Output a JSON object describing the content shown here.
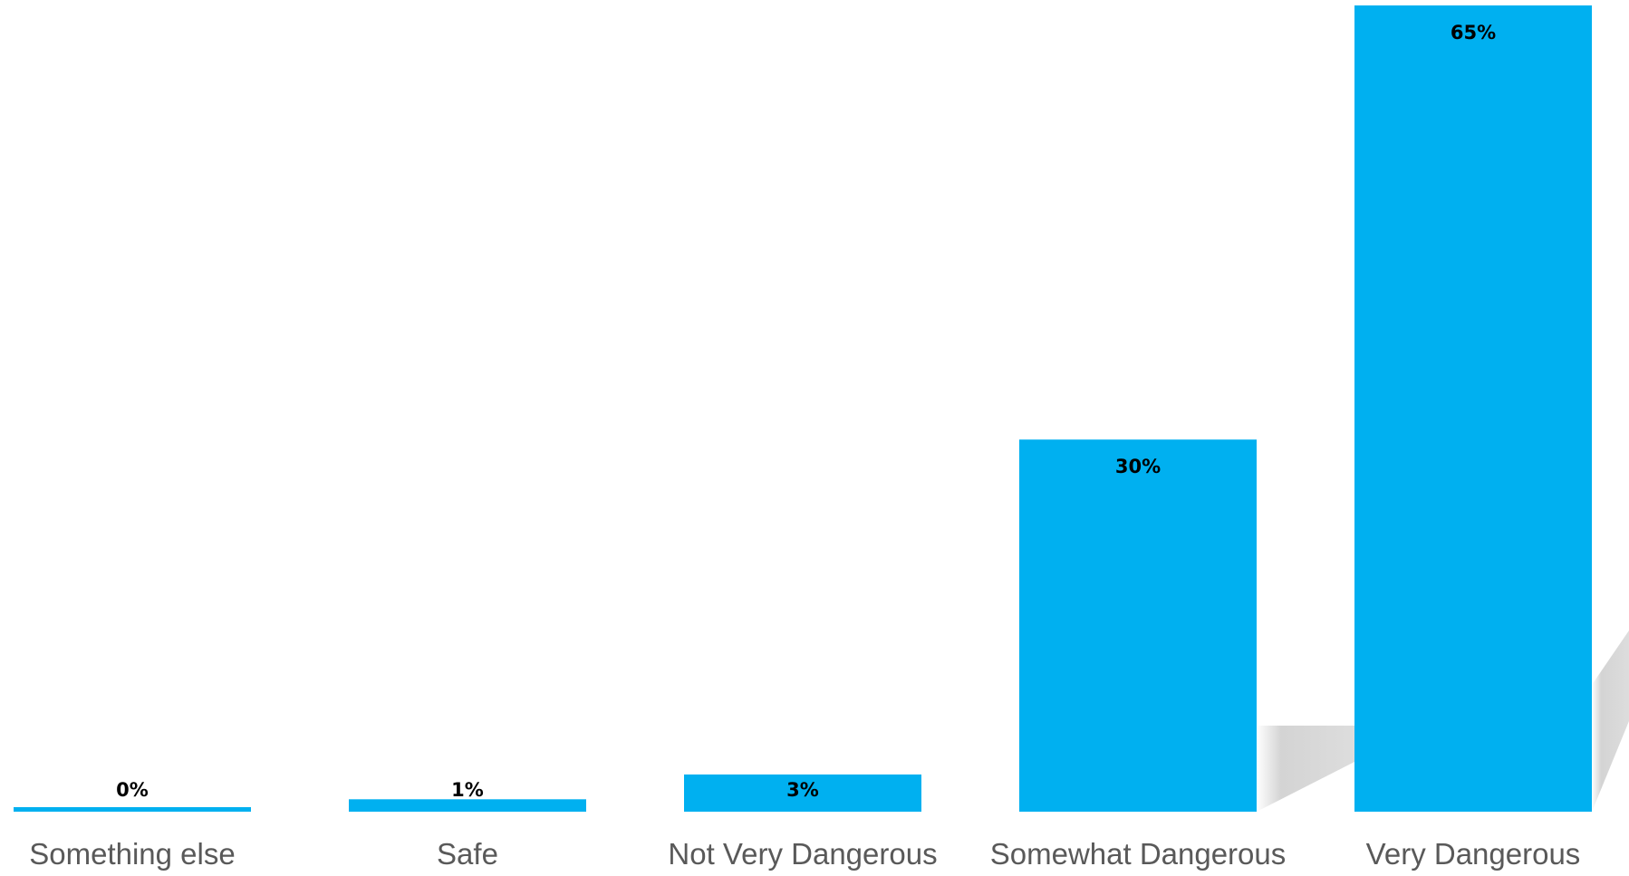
{
  "chart_data": {
    "type": "bar",
    "categories": [
      "Something else",
      "Safe",
      "Not Very Dangerous",
      "Somewhat Dangerous",
      "Very Dangerous"
    ],
    "values": [
      0,
      1,
      3,
      30,
      65
    ],
    "value_labels": [
      "0%",
      "1%",
      "3%",
      "30%",
      "65%"
    ],
    "title": "",
    "xlabel": "",
    "ylabel": "",
    "ylim": [
      0,
      65
    ],
    "grid": false,
    "legend": "none",
    "bar_color": "#00B0F0",
    "shadow_color": "#d4d4d4"
  }
}
